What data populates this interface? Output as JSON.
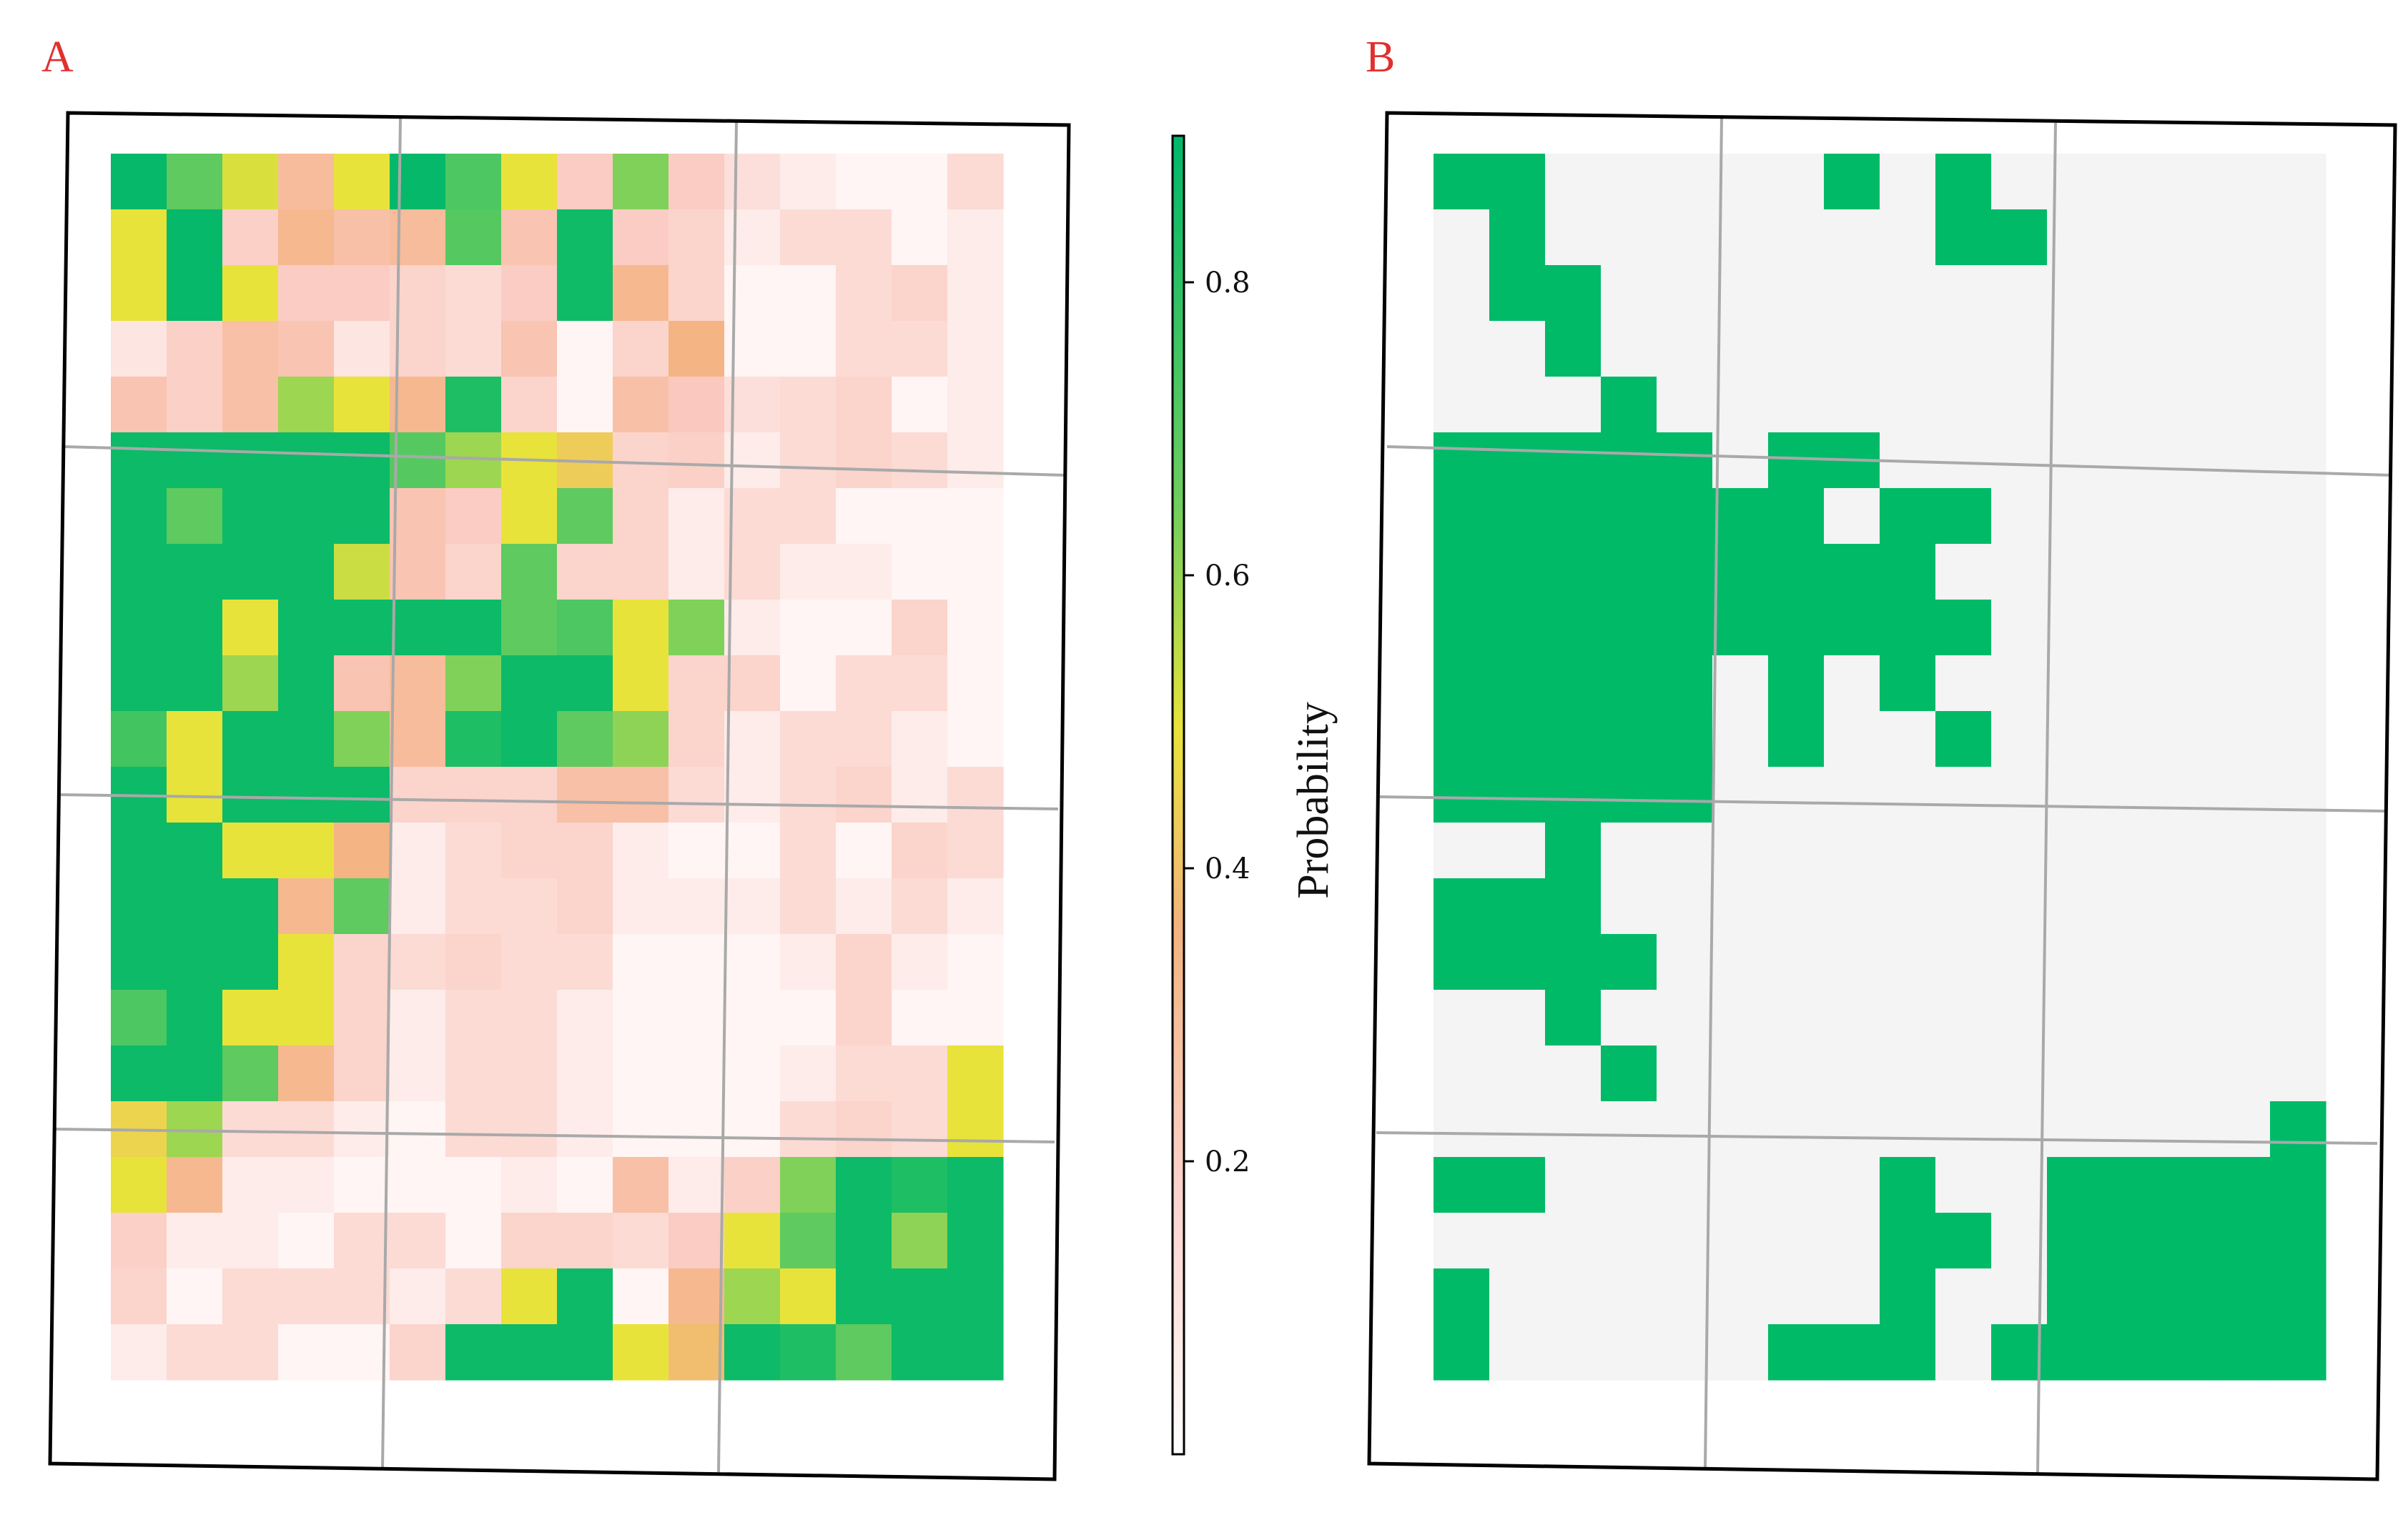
{
  "panels": {
    "a": {
      "label": "A",
      "label_color": "#e0302f"
    },
    "b": {
      "label": "B",
      "label_color": "#e0302f"
    }
  },
  "colorbar": {
    "title": "Probability",
    "ticks": [
      {
        "value": 0.2,
        "label": "0.2"
      },
      {
        "value": 0.4,
        "label": "0.4"
      },
      {
        "value": 0.6,
        "label": "0.6"
      },
      {
        "value": 0.8,
        "label": "0.8"
      }
    ],
    "range": [
      0,
      0.9
    ]
  },
  "colors": {
    "empty": "#f4f4f4",
    "map_b": "#00ba68",
    "gradient": [
      "#ffffff",
      "#fbd3cd",
      "#f3b37d",
      "#e8e33a",
      "#6fce5e",
      "#00b76a"
    ]
  },
  "chart_data": [
    {
      "type": "heatmap",
      "title": "A",
      "rows": 22,
      "cols": 16,
      "value_range": [
        0,
        0.9
      ],
      "values": [
        [
          0.88,
          0.66,
          0.48,
          0.28,
          0.46,
          0.88,
          0.7,
          0.46,
          0.2,
          0.6,
          0.2,
          0.1,
          0.06,
          0.03,
          0.03,
          0.12
        ],
        [
          0.46,
          0.88,
          0.18,
          0.3,
          0.26,
          0.28,
          0.68,
          0.24,
          0.85,
          0.2,
          0.16,
          0.06,
          0.12,
          0.12,
          0.03,
          0.06
        ],
        [
          0.46,
          0.88,
          0.46,
          0.2,
          0.2,
          0.16,
          0.12,
          0.2,
          0.85,
          0.3,
          0.16,
          0.03,
          0.03,
          0.12,
          0.16,
          0.06
        ],
        [
          0.08,
          0.18,
          0.26,
          0.24,
          0.08,
          0.16,
          0.12,
          0.24,
          0.03,
          0.16,
          0.32,
          0.03,
          0.03,
          0.12,
          0.12,
          0.06
        ],
        [
          0.24,
          0.18,
          0.26,
          0.56,
          0.46,
          0.3,
          0.8,
          0.16,
          0.03,
          0.26,
          0.22,
          0.1,
          0.12,
          0.16,
          0.03,
          0.06
        ],
        [
          0.86,
          0.86,
          0.86,
          0.86,
          0.86,
          0.68,
          0.56,
          0.46,
          0.4,
          0.16,
          0.18,
          0.06,
          0.12,
          0.16,
          0.12,
          0.06
        ],
        [
          0.86,
          0.66,
          0.86,
          0.86,
          0.86,
          0.24,
          0.2,
          0.46,
          0.66,
          0.16,
          0.06,
          0.12,
          0.12,
          0.03,
          0.03,
          0.03
        ],
        [
          0.86,
          0.86,
          0.86,
          0.86,
          0.5,
          0.24,
          0.16,
          0.66,
          0.16,
          0.16,
          0.06,
          0.12,
          0.06,
          0.06,
          0.03,
          0.03
        ],
        [
          0.86,
          0.86,
          0.46,
          0.86,
          0.86,
          0.86,
          0.86,
          0.66,
          0.7,
          0.46,
          0.6,
          0.06,
          0.03,
          0.03,
          0.16,
          0.03
        ],
        [
          0.86,
          0.86,
          0.56,
          0.86,
          0.24,
          0.28,
          0.6,
          0.86,
          0.86,
          0.46,
          0.16,
          0.16,
          0.03,
          0.12,
          0.12,
          0.03
        ],
        [
          0.72,
          0.46,
          0.86,
          0.86,
          0.6,
          0.28,
          0.8,
          0.86,
          0.66,
          0.58,
          0.16,
          0.06,
          0.12,
          0.12,
          0.06,
          0.03
        ],
        [
          0.86,
          0.46,
          0.86,
          0.86,
          0.86,
          0.16,
          0.16,
          0.16,
          0.26,
          0.26,
          0.12,
          0.06,
          0.12,
          0.16,
          0.06,
          0.12
        ],
        [
          0.86,
          0.86,
          0.46,
          0.46,
          0.32,
          0.06,
          0.12,
          0.16,
          0.16,
          0.06,
          0.03,
          0.03,
          0.12,
          0.03,
          0.16,
          0.12
        ],
        [
          0.86,
          0.86,
          0.86,
          0.3,
          0.66,
          0.06,
          0.12,
          0.12,
          0.16,
          0.06,
          0.06,
          0.06,
          0.12,
          0.06,
          0.12,
          0.06
        ],
        [
          0.86,
          0.86,
          0.86,
          0.46,
          0.16,
          0.12,
          0.16,
          0.12,
          0.12,
          0.03,
          0.03,
          0.03,
          0.06,
          0.16,
          0.06,
          0.03
        ],
        [
          0.7,
          0.86,
          0.46,
          0.46,
          0.16,
          0.06,
          0.12,
          0.12,
          0.06,
          0.03,
          0.03,
          0.03,
          0.03,
          0.16,
          0.03,
          0.03
        ],
        [
          0.86,
          0.86,
          0.66,
          0.3,
          0.16,
          0.06,
          0.12,
          0.12,
          0.06,
          0.03,
          0.03,
          0.03,
          0.06,
          0.12,
          0.12,
          0.46
        ],
        [
          0.42,
          0.56,
          0.12,
          0.12,
          0.06,
          0.03,
          0.12,
          0.12,
          0.06,
          0.03,
          0.03,
          0.03,
          0.12,
          0.16,
          0.12,
          0.46
        ],
        [
          0.46,
          0.3,
          0.06,
          0.06,
          0.03,
          0.03,
          0.03,
          0.06,
          0.03,
          0.26,
          0.06,
          0.18,
          0.6,
          0.86,
          0.8,
          0.86
        ],
        [
          0.18,
          0.06,
          0.06,
          0.03,
          0.12,
          0.12,
          0.03,
          0.16,
          0.16,
          0.12,
          0.2,
          0.46,
          0.66,
          0.86,
          0.58,
          0.86
        ],
        [
          0.16,
          0.03,
          0.12,
          0.12,
          0.12,
          0.06,
          0.12,
          0.46,
          0.86,
          0.03,
          0.3,
          0.56,
          0.46,
          0.86,
          0.86,
          0.86
        ],
        [
          0.06,
          0.12,
          0.12,
          0.03,
          0.03,
          0.16,
          0.86,
          0.86,
          0.86,
          0.46,
          0.36,
          0.86,
          0.8,
          0.66,
          0.86,
          0.86
        ]
      ]
    },
    {
      "type": "heatmap",
      "title": "B",
      "rows": 22,
      "cols": 16,
      "binary": true,
      "values": [
        [
          1,
          1,
          0,
          0,
          0,
          0,
          0,
          1,
          0,
          1,
          0,
          0,
          0,
          0,
          0,
          0
        ],
        [
          0,
          1,
          0,
          0,
          0,
          0,
          0,
          0,
          0,
          1,
          1,
          0,
          0,
          0,
          0,
          0
        ],
        [
          0,
          1,
          1,
          0,
          0,
          0,
          0,
          0,
          0,
          0,
          0,
          0,
          0,
          0,
          0,
          0
        ],
        [
          0,
          0,
          1,
          0,
          0,
          0,
          0,
          0,
          0,
          0,
          0,
          0,
          0,
          0,
          0,
          0
        ],
        [
          0,
          0,
          0,
          1,
          0,
          0,
          0,
          0,
          0,
          0,
          0,
          0,
          0,
          0,
          0,
          0
        ],
        [
          1,
          1,
          1,
          1,
          1,
          0,
          1,
          1,
          0,
          0,
          0,
          0,
          0,
          0,
          0,
          0
        ],
        [
          1,
          1,
          1,
          1,
          1,
          1,
          1,
          0,
          1,
          1,
          0,
          0,
          0,
          0,
          0,
          0
        ],
        [
          1,
          1,
          1,
          1,
          1,
          1,
          1,
          1,
          1,
          0,
          0,
          0,
          0,
          0,
          0,
          0
        ],
        [
          1,
          1,
          1,
          1,
          1,
          1,
          1,
          1,
          1,
          1,
          0,
          0,
          0,
          0,
          0,
          0
        ],
        [
          1,
          1,
          1,
          1,
          1,
          0,
          1,
          0,
          1,
          0,
          0,
          0,
          0,
          0,
          0,
          0
        ],
        [
          1,
          1,
          1,
          1,
          1,
          0,
          1,
          0,
          0,
          1,
          0,
          0,
          0,
          0,
          0,
          0
        ],
        [
          1,
          1,
          1,
          1,
          1,
          0,
          0,
          0,
          0,
          0,
          0,
          0,
          0,
          0,
          0,
          0
        ],
        [
          0,
          0,
          1,
          0,
          0,
          0,
          0,
          0,
          0,
          0,
          0,
          0,
          0,
          0,
          0,
          0
        ],
        [
          1,
          1,
          1,
          0,
          0,
          0,
          0,
          0,
          0,
          0,
          0,
          0,
          0,
          0,
          0,
          0
        ],
        [
          1,
          1,
          1,
          1,
          0,
          0,
          0,
          0,
          0,
          0,
          0,
          0,
          0,
          0,
          0,
          0
        ],
        [
          0,
          0,
          1,
          0,
          0,
          0,
          0,
          0,
          0,
          0,
          0,
          0,
          0,
          0,
          0,
          0
        ],
        [
          0,
          0,
          0,
          1,
          0,
          0,
          0,
          0,
          0,
          0,
          0,
          0,
          0,
          0,
          0,
          0
        ],
        [
          0,
          0,
          0,
          0,
          0,
          0,
          0,
          0,
          0,
          0,
          0,
          0,
          0,
          0,
          0,
          1
        ],
        [
          1,
          1,
          0,
          0,
          0,
          0,
          0,
          0,
          1,
          0,
          0,
          1,
          1,
          1,
          1,
          1
        ],
        [
          0,
          0,
          0,
          0,
          0,
          0,
          0,
          0,
          1,
          1,
          0,
          1,
          1,
          1,
          1,
          1
        ],
        [
          1,
          0,
          0,
          0,
          0,
          0,
          0,
          0,
          1,
          0,
          0,
          1,
          1,
          1,
          1,
          1
        ],
        [
          1,
          0,
          0,
          0,
          0,
          0,
          1,
          1,
          1,
          0,
          1,
          1,
          1,
          1,
          1,
          1
        ]
      ]
    }
  ]
}
